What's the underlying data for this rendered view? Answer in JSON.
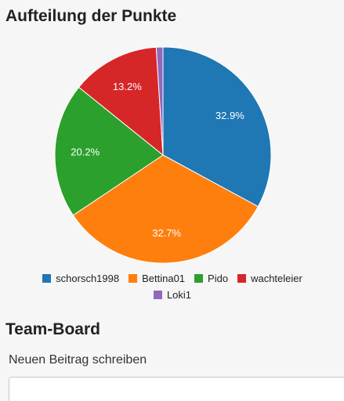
{
  "header": {
    "chart_title": "Aufteilung der Punkte"
  },
  "chart_data": {
    "type": "pie",
    "title": "Aufteilung der Punkte",
    "categories": [
      "schorsch1998",
      "Bettina01",
      "Pido",
      "wachteleier",
      "Loki1"
    ],
    "values": [
      32.9,
      32.7,
      20.2,
      13.2,
      1.0
    ],
    "labels": [
      "32.9%",
      "32.7%",
      "20.2%",
      "13.2%",
      ""
    ],
    "colors": [
      "#1f77b4",
      "#ff7f0e",
      "#2ca02c",
      "#d62728",
      "#9467bd"
    ],
    "legend": "bottom"
  },
  "team_board": {
    "title": "Team-Board",
    "compose_label": "Neuen Beitrag schreiben",
    "compose_value": ""
  }
}
